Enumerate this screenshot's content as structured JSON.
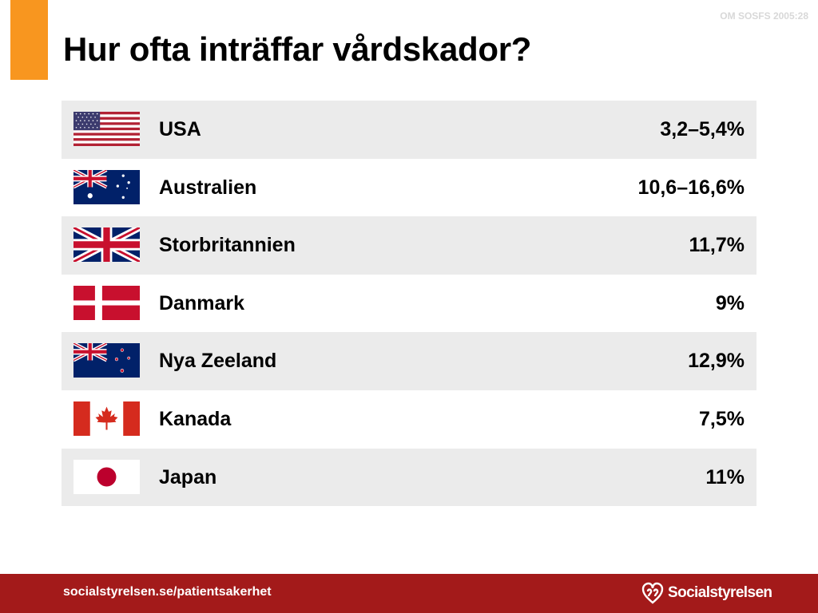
{
  "header": {
    "reference": "OM SOSFS 2005:28",
    "title": "Hur ofta inträffar vårdskador?"
  },
  "rows": [
    {
      "country": "USA",
      "value": "3,2–5,4%",
      "flag": "usa-flag-icon"
    },
    {
      "country": "Australien",
      "value": "10,6–16,6%",
      "flag": "australia-flag-icon"
    },
    {
      "country": "Storbritannien",
      "value": "11,7%",
      "flag": "uk-flag-icon"
    },
    {
      "country": "Danmark",
      "value": "9%",
      "flag": "denmark-flag-icon"
    },
    {
      "country": "Nya Zeeland",
      "value": "12,9%",
      "flag": "new-zealand-flag-icon"
    },
    {
      "country": "Kanada",
      "value": "7,5%",
      "flag": "canada-flag-icon"
    },
    {
      "country": "Japan",
      "value": "11%",
      "flag": "japan-flag-icon"
    }
  ],
  "footer": {
    "url": "socialstyrelsen.se/patientsakerhet",
    "logo_text": "Socialstyrelsen"
  },
  "colors": {
    "accent": "#f8961f",
    "footer": "#a31a1a",
    "row_shade": "#ebebeb"
  }
}
